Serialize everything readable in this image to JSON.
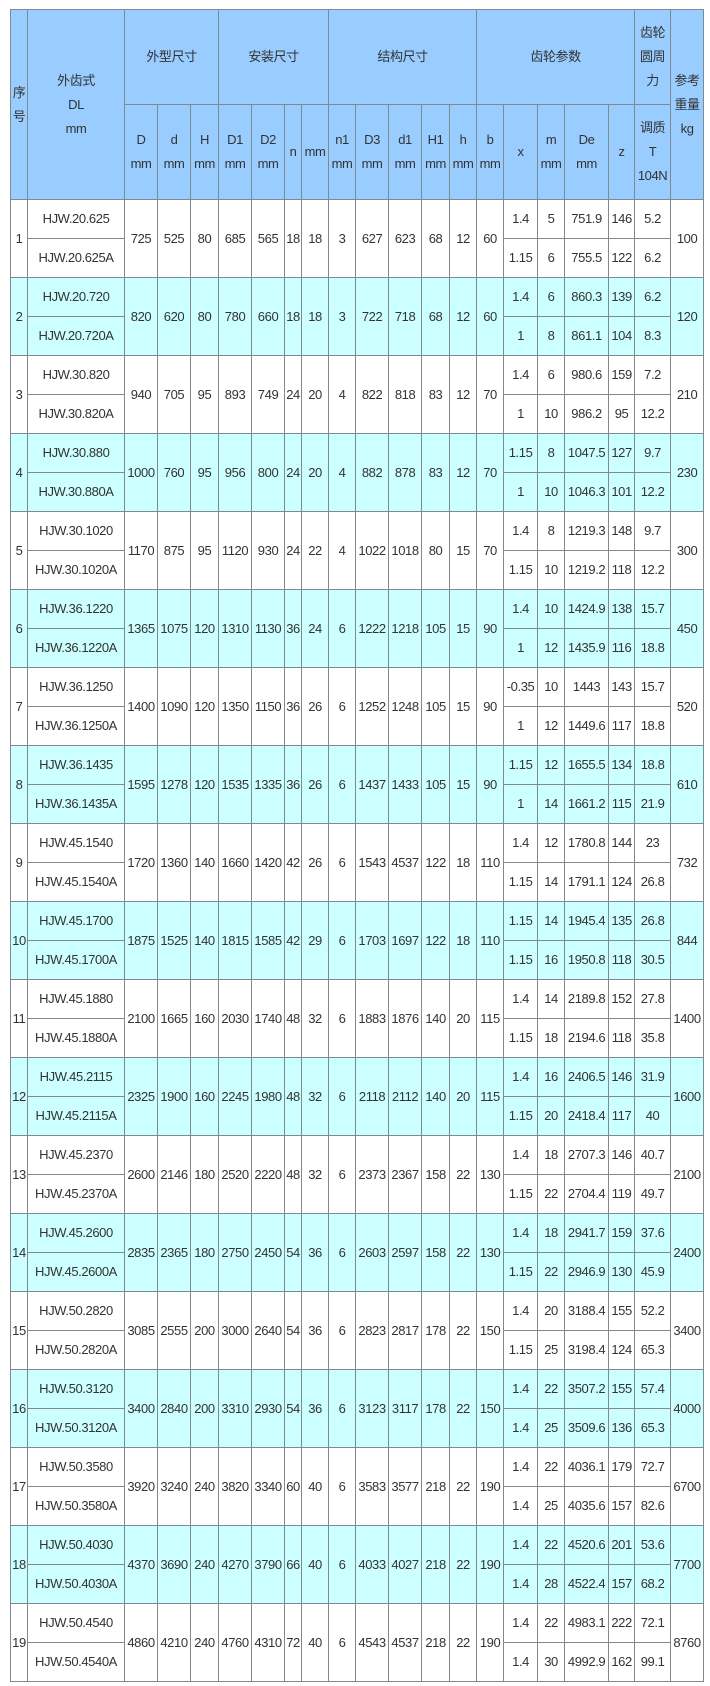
{
  "header": {
    "no": "序\n号",
    "model": "外齿式\nDL\nmm",
    "groups": [
      "外型尺寸",
      "安装尺寸",
      "结构尺寸",
      "齿轮参数",
      "齿轮\n圆周\n力"
    ],
    "weight": "参考\n重量\nkg",
    "sub": [
      "D\nmm",
      "d\nmm",
      "H\nmm",
      "D1\nmm",
      "D2\nmm",
      "n",
      "mm",
      "n1\nmm",
      "D3\nmm",
      "d1\nmm",
      "H1\nmm",
      "h\nmm",
      "b\nmm",
      "x",
      "m\nmm",
      "De\nmm",
      "z",
      "调质\nT\n104N"
    ]
  },
  "colors": {
    "header": "#99ccff",
    "alt_row": "#ccffff",
    "border": "#7f8a90"
  },
  "rows": [
    {
      "no": "1",
      "models": [
        "HJW.20.625",
        "HJW.20.625A"
      ],
      "dims": [
        "725",
        "525",
        "80",
        "685",
        "565",
        "18",
        "18",
        "3",
        "627",
        "623",
        "68",
        "12",
        "60"
      ],
      "gears": [
        [
          "1.4",
          "5",
          "751.9",
          "146",
          "5.2"
        ],
        [
          "1.15",
          "6",
          "755.5",
          "122",
          "6.2"
        ]
      ],
      "kg": "100"
    },
    {
      "no": "2",
      "models": [
        "HJW.20.720",
        "HJW.20.720A"
      ],
      "dims": [
        "820",
        "620",
        "80",
        "780",
        "660",
        "18",
        "18",
        "3",
        "722",
        "718",
        "68",
        "12",
        "60"
      ],
      "gears": [
        [
          "1.4",
          "6",
          "860.3",
          "139",
          "6.2"
        ],
        [
          "1",
          "8",
          "861.1",
          "104",
          "8.3"
        ]
      ],
      "kg": "120"
    },
    {
      "no": "3",
      "models": [
        "HJW.30.820",
        "HJW.30.820A"
      ],
      "dims": [
        "940",
        "705",
        "95",
        "893",
        "749",
        "24",
        "20",
        "4",
        "822",
        "818",
        "83",
        "12",
        "70"
      ],
      "gears": [
        [
          "1.4",
          "6",
          "980.6",
          "159",
          "7.2"
        ],
        [
          "1",
          "10",
          "986.2",
          "95",
          "12.2"
        ]
      ],
      "kg": "210"
    },
    {
      "no": "4",
      "models": [
        "HJW.30.880",
        "HJW.30.880A"
      ],
      "dims": [
        "1000",
        "760",
        "95",
        "956",
        "800",
        "24",
        "20",
        "4",
        "882",
        "878",
        "83",
        "12",
        "70"
      ],
      "gears": [
        [
          "1.15",
          "8",
          "1047.5",
          "127",
          "9.7"
        ],
        [
          "1",
          "10",
          "1046.3",
          "101",
          "12.2"
        ]
      ],
      "kg": "230"
    },
    {
      "no": "5",
      "models": [
        "HJW.30.1020",
        "HJW.30.1020A"
      ],
      "dims": [
        "1170",
        "875",
        "95",
        "1120",
        "930",
        "24",
        "22",
        "4",
        "1022",
        "1018",
        "80",
        "15",
        "70"
      ],
      "gears": [
        [
          "1.4",
          "8",
          "1219.3",
          "148",
          "9.7"
        ],
        [
          "1.15",
          "10",
          "1219.2",
          "118",
          "12.2"
        ]
      ],
      "kg": "300"
    },
    {
      "no": "6",
      "models": [
        "HJW.36.1220",
        "HJW.36.1220A"
      ],
      "dims": [
        "1365",
        "1075",
        "120",
        "1310",
        "1130",
        "36",
        "24",
        "6",
        "1222",
        "1218",
        "105",
        "15",
        "90"
      ],
      "gears": [
        [
          "1.4",
          "10",
          "1424.9",
          "138",
          "15.7"
        ],
        [
          "1",
          "12",
          "1435.9",
          "116",
          "18.8"
        ]
      ],
      "kg": "450"
    },
    {
      "no": "7",
      "models": [
        "HJW.36.1250",
        "HJW.36.1250A"
      ],
      "dims": [
        "1400",
        "1090",
        "120",
        "1350",
        "1150",
        "36",
        "26",
        "6",
        "1252",
        "1248",
        "105",
        "15",
        "90"
      ],
      "gears": [
        [
          "-0.35",
          "10",
          "1443",
          "143",
          "15.7"
        ],
        [
          "1",
          "12",
          "1449.6",
          "117",
          "18.8"
        ]
      ],
      "kg": "520"
    },
    {
      "no": "8",
      "models": [
        "HJW.36.1435",
        "HJW.36.1435A"
      ],
      "dims": [
        "1595",
        "1278",
        "120",
        "1535",
        "1335",
        "36",
        "26",
        "6",
        "1437",
        "1433",
        "105",
        "15",
        "90"
      ],
      "gears": [
        [
          "1.15",
          "12",
          "1655.5",
          "134",
          "18.8"
        ],
        [
          "1",
          "14",
          "1661.2",
          "115",
          "21.9"
        ]
      ],
      "kg": "610"
    },
    {
      "no": "9",
      "models": [
        "HJW.45.1540",
        "HJW.45.1540A"
      ],
      "dims": [
        "1720",
        "1360",
        "140",
        "1660",
        "1420",
        "42",
        "26",
        "6",
        "1543",
        "4537",
        "122",
        "18",
        "110"
      ],
      "gears": [
        [
          "1.4",
          "12",
          "1780.8",
          "144",
          "23"
        ],
        [
          "1.15",
          "14",
          "1791.1",
          "124",
          "26.8"
        ]
      ],
      "kg": "732"
    },
    {
      "no": "10",
      "models": [
        "HJW.45.1700",
        "HJW.45.1700A"
      ],
      "dims": [
        "1875",
        "1525",
        "140",
        "1815",
        "1585",
        "42",
        "29",
        "6",
        "1703",
        "1697",
        "122",
        "18",
        "110"
      ],
      "gears": [
        [
          "1.15",
          "14",
          "1945.4",
          "135",
          "26.8"
        ],
        [
          "1.15",
          "16",
          "1950.8",
          "118",
          "30.5"
        ]
      ],
      "kg": "844"
    },
    {
      "no": "11",
      "models": [
        "HJW.45.1880",
        "HJW.45.1880A"
      ],
      "dims": [
        "2100",
        "1665",
        "160",
        "2030",
        "1740",
        "48",
        "32",
        "6",
        "1883",
        "1876",
        "140",
        "20",
        "115"
      ],
      "gears": [
        [
          "1.4",
          "14",
          "2189.8",
          "152",
          "27.8"
        ],
        [
          "1.15",
          "18",
          "2194.6",
          "118",
          "35.8"
        ]
      ],
      "kg": "1400"
    },
    {
      "no": "12",
      "models": [
        "HJW.45.2115",
        "HJW.45.2115A"
      ],
      "dims": [
        "2325",
        "1900",
        "160",
        "2245",
        "1980",
        "48",
        "32",
        "6",
        "2118",
        "2112",
        "140",
        "20",
        "115"
      ],
      "gears": [
        [
          "1.4",
          "16",
          "2406.5",
          "146",
          "31.9"
        ],
        [
          "1.15",
          "20",
          "2418.4",
          "117",
          "40"
        ]
      ],
      "kg": "1600"
    },
    {
      "no": "13",
      "models": [
        "HJW.45.2370",
        "HJW.45.2370A"
      ],
      "dims": [
        "2600",
        "2146",
        "180",
        "2520",
        "2220",
        "48",
        "32",
        "6",
        "2373",
        "2367",
        "158",
        "22",
        "130"
      ],
      "gears": [
        [
          "1.4",
          "18",
          "2707.3",
          "146",
          "40.7"
        ],
        [
          "1.15",
          "22",
          "2704.4",
          "119",
          "49.7"
        ]
      ],
      "kg": "2100"
    },
    {
      "no": "14",
      "models": [
        "HJW.45.2600",
        "HJW.45.2600A"
      ],
      "dims": [
        "2835",
        "2365",
        "180",
        "2750",
        "2450",
        "54",
        "36",
        "6",
        "2603",
        "2597",
        "158",
        "22",
        "130"
      ],
      "gears": [
        [
          "1.4",
          "18",
          "2941.7",
          "159",
          "37.6"
        ],
        [
          "1.15",
          "22",
          "2946.9",
          "130",
          "45.9"
        ]
      ],
      "kg": "2400"
    },
    {
      "no": "15",
      "models": [
        "HJW.50.2820",
        "HJW.50.2820A"
      ],
      "dims": [
        "3085",
        "2555",
        "200",
        "3000",
        "2640",
        "54",
        "36",
        "6",
        "2823",
        "2817",
        "178",
        "22",
        "150"
      ],
      "gears": [
        [
          "1.4",
          "20",
          "3188.4",
          "155",
          "52.2"
        ],
        [
          "1.15",
          "25",
          "3198.4",
          "124",
          "65.3"
        ]
      ],
      "kg": "3400"
    },
    {
      "no": "16",
      "models": [
        "HJW.50.3120",
        "HJW.50.3120A"
      ],
      "dims": [
        "3400",
        "2840",
        "200",
        "3310",
        "2930",
        "54",
        "36",
        "6",
        "3123",
        "3117",
        "178",
        "22",
        "150"
      ],
      "gears": [
        [
          "1.4",
          "22",
          "3507.2",
          "155",
          "57.4"
        ],
        [
          "1.4",
          "25",
          "3509.6",
          "136",
          "65.3"
        ]
      ],
      "kg": "4000"
    },
    {
      "no": "17",
      "models": [
        "HJW.50.3580",
        "HJW.50.3580A"
      ],
      "dims": [
        "3920",
        "3240",
        "240",
        "3820",
        "3340",
        "60",
        "40",
        "6",
        "3583",
        "3577",
        "218",
        "22",
        "190"
      ],
      "gears": [
        [
          "1.4",
          "22",
          "4036.1",
          "179",
          "72.7"
        ],
        [
          "1.4",
          "25",
          "4035.6",
          "157",
          "82.6"
        ]
      ],
      "kg": "6700"
    },
    {
      "no": "18",
      "models": [
        "HJW.50.4030",
        "HJW.50.4030A"
      ],
      "dims": [
        "4370",
        "3690",
        "240",
        "4270",
        "3790",
        "66",
        "40",
        "6",
        "4033",
        "4027",
        "218",
        "22",
        "190"
      ],
      "gears": [
        [
          "1.4",
          "22",
          "4520.6",
          "201",
          "53.6"
        ],
        [
          "1.4",
          "28",
          "4522.4",
          "157",
          "68.2"
        ]
      ],
      "kg": "7700"
    },
    {
      "no": "19",
      "models": [
        "HJW.50.4540",
        "HJW.50.4540A"
      ],
      "dims": [
        "4860",
        "4210",
        "240",
        "4760",
        "4310",
        "72",
        "40",
        "6",
        "4543",
        "4537",
        "218",
        "22",
        "190"
      ],
      "gears": [
        [
          "1.4",
          "22",
          "4983.1",
          "222",
          "72.1"
        ],
        [
          "1.4",
          "30",
          "4992.9",
          "162",
          "99.1"
        ]
      ],
      "kg": "8760"
    }
  ]
}
